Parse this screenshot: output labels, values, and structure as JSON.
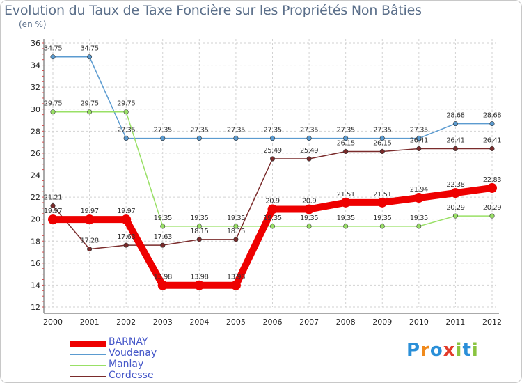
{
  "title": "Evolution du Taux de Taxe Foncière sur les Propriétés Non Bâties",
  "unit_label": "(en %)",
  "brand": {
    "letters": [
      "P",
      "r",
      "o",
      "x",
      "i",
      "t",
      "i"
    ],
    "colors": [
      "#2a8fd8",
      "#f08a1c",
      "#2a8fd8",
      "#e23b2a",
      "#8ac43f",
      "#2a8fd8",
      "#8ac43f"
    ]
  },
  "chart_data": {
    "type": "line",
    "title": "Evolution du Taux de Taxe Foncière sur les Propriétés Non Bâties",
    "ylabel": "(en %)",
    "xlabel": "",
    "categories": [
      "2000",
      "2001",
      "2002",
      "2003",
      "2004",
      "2005",
      "2006",
      "2007",
      "2008",
      "2009",
      "2010",
      "2011",
      "2012"
    ],
    "ylim": [
      12,
      36
    ],
    "yticks": [
      12,
      14,
      16,
      18,
      20,
      22,
      24,
      26,
      28,
      30,
      32,
      34,
      36
    ],
    "legend_position": "bottom-left",
    "series": [
      {
        "name": "BARNAY",
        "color": "#ee0000",
        "values": [
          19.97,
          19.97,
          19.97,
          13.98,
          13.98,
          13.98,
          20.9,
          20.9,
          21.51,
          21.51,
          21.94,
          22.38,
          22.83
        ],
        "labels": [
          "19.97",
          "19.97",
          "19.97",
          "13.98",
          "13.98",
          "13.98",
          "20.9",
          "20.9",
          "21.51",
          "21.51",
          "21.94",
          "22.38",
          "22.83"
        ]
      },
      {
        "name": "Voudenay",
        "color": "#5b9bd0",
        "values": [
          34.75,
          34.75,
          27.35,
          27.35,
          27.35,
          27.35,
          27.35,
          27.35,
          27.35,
          27.35,
          27.35,
          28.68,
          28.68
        ],
        "labels": [
          "34.75",
          "34.75",
          "27.35",
          "27.35",
          "27.35",
          "27.35",
          "27.35",
          "27.35",
          "27.35",
          "27.35",
          "27.35",
          "28.68",
          "28.68"
        ]
      },
      {
        "name": "Manlay",
        "color": "#99e066",
        "values": [
          29.75,
          29.75,
          29.75,
          19.35,
          19.35,
          19.35,
          19.35,
          19.35,
          19.35,
          19.35,
          19.35,
          20.29,
          20.29
        ],
        "labels": [
          "29.75",
          "29.75",
          "29.75",
          "19.35",
          "19.35",
          "19.35",
          "19.35",
          "19.35",
          "19.35",
          "19.35",
          "19.35",
          "20.29",
          "20.29"
        ]
      },
      {
        "name": "Cordesse",
        "color": "#7a2b2b",
        "values": [
          21.21,
          17.28,
          17.63,
          17.63,
          18.15,
          18.15,
          25.49,
          25.49,
          26.15,
          26.15,
          26.41,
          26.41,
          26.41
        ],
        "labels": [
          "21.21",
          "17.28",
          "17.63",
          "17.63",
          "18.15",
          "18.15",
          "25.49",
          "25.49",
          "26.15",
          "26.15",
          "26.41",
          "26.41",
          "26.41"
        ]
      }
    ]
  }
}
